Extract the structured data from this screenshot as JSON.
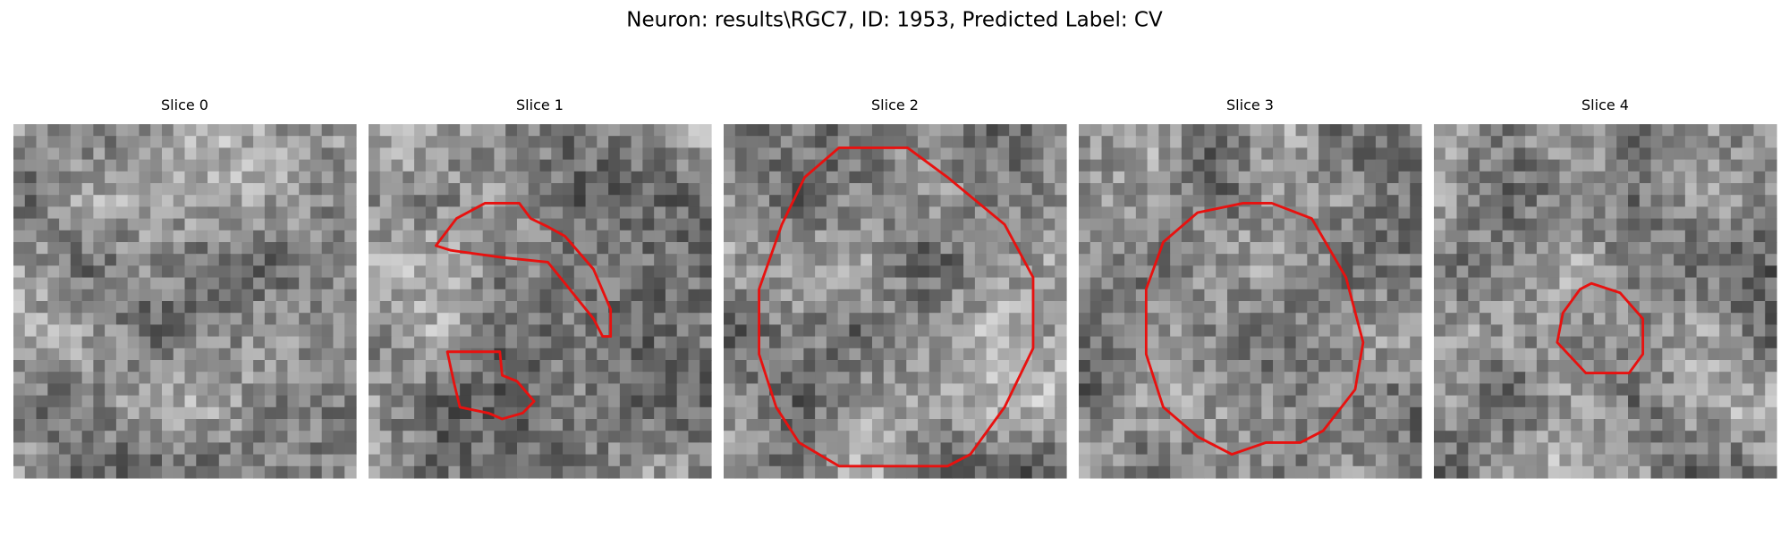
{
  "header": {
    "title": "Neuron: results\\RGC7, ID: 1953, Predicted Label: CV"
  },
  "panels": [
    {
      "title": "Slice 0"
    },
    {
      "title": "Slice 1"
    },
    {
      "title": "Slice 2"
    },
    {
      "title": "Slice 3"
    },
    {
      "title": "Slice 4"
    }
  ]
}
